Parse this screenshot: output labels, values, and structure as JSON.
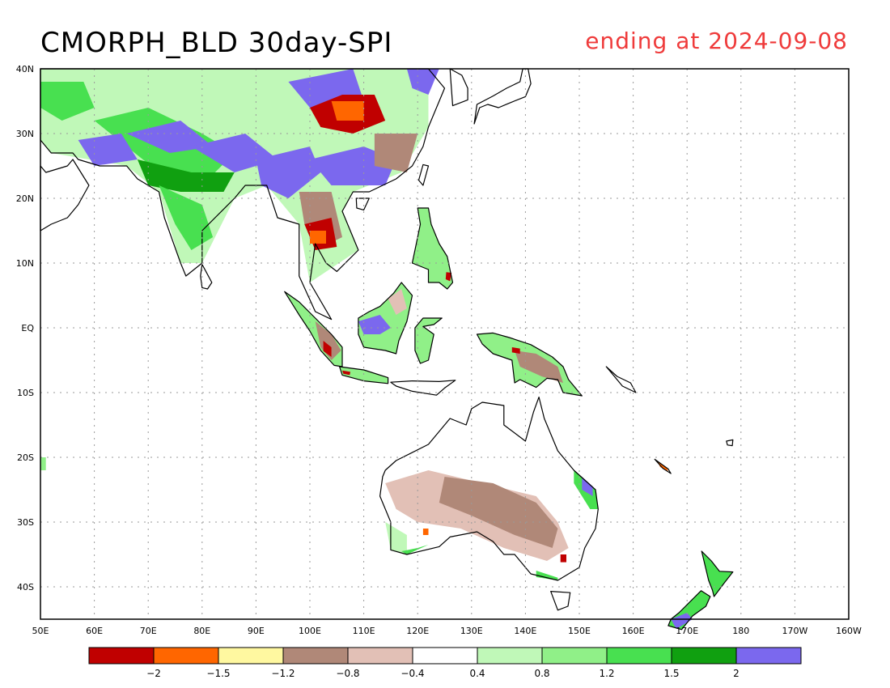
{
  "title": "CMORPH_BLD 30day-SPI",
  "subtitle": "ending at 2024-09-08",
  "map": {
    "lon_range": [
      50,
      200
    ],
    "lat_range": [
      -45,
      40
    ],
    "lon_ticks": [
      "50E",
      "60E",
      "70E",
      "80E",
      "90E",
      "100E",
      "110E",
      "120E",
      "130E",
      "140E",
      "150E",
      "160E",
      "170E",
      "180",
      "170W",
      "160W"
    ],
    "lat_ticks": [
      "40N",
      "30N",
      "20N",
      "10N",
      "EQ",
      "10S",
      "20S",
      "30S",
      "40S"
    ],
    "grid": true
  },
  "colorbar": {
    "colors": [
      "#c00000",
      "#ff6600",
      "#fff8a0",
      "#b08878",
      "#e2c0b6",
      "#ffffff",
      "#c0f8b8",
      "#90f088",
      "#48e050",
      "#10a010",
      "#7b68ee"
    ],
    "labels": [
      "−2",
      "−1.5",
      "−1.2",
      "−0.8",
      "−0.4",
      "0.4",
      "0.8",
      "1.2",
      "1.5",
      "2"
    ]
  }
}
